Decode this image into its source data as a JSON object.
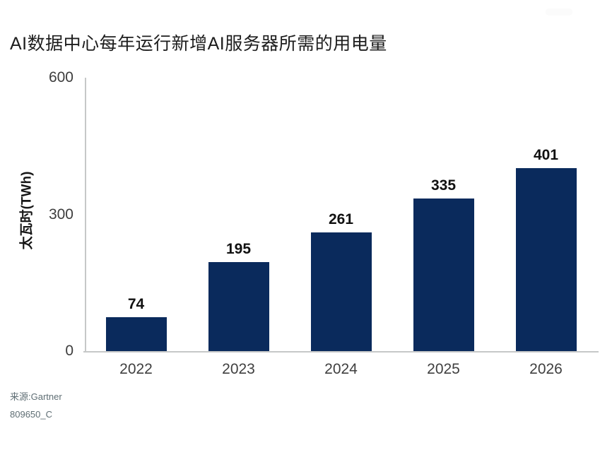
{
  "chart_data": {
    "type": "bar",
    "title": "AI数据中心每年运行新增AI服务器所需的用电量",
    "categories": [
      "2022",
      "2023",
      "2024",
      "2025",
      "2026"
    ],
    "values": [
      74,
      195,
      261,
      335,
      401
    ],
    "value_labels": [
      "74",
      "195",
      "261",
      "335",
      "401"
    ],
    "xlabel": "",
    "ylabel": "太瓦时(TWh)",
    "ylim": [
      0,
      600
    ],
    "yticks": [
      0,
      300,
      600
    ],
    "grid": false,
    "legend": null,
    "bar_color": "#0a2a5c",
    "axis_color": "#c6c8c8"
  },
  "source": {
    "line1": "来源:Gartner",
    "line2": "809650_C"
  }
}
